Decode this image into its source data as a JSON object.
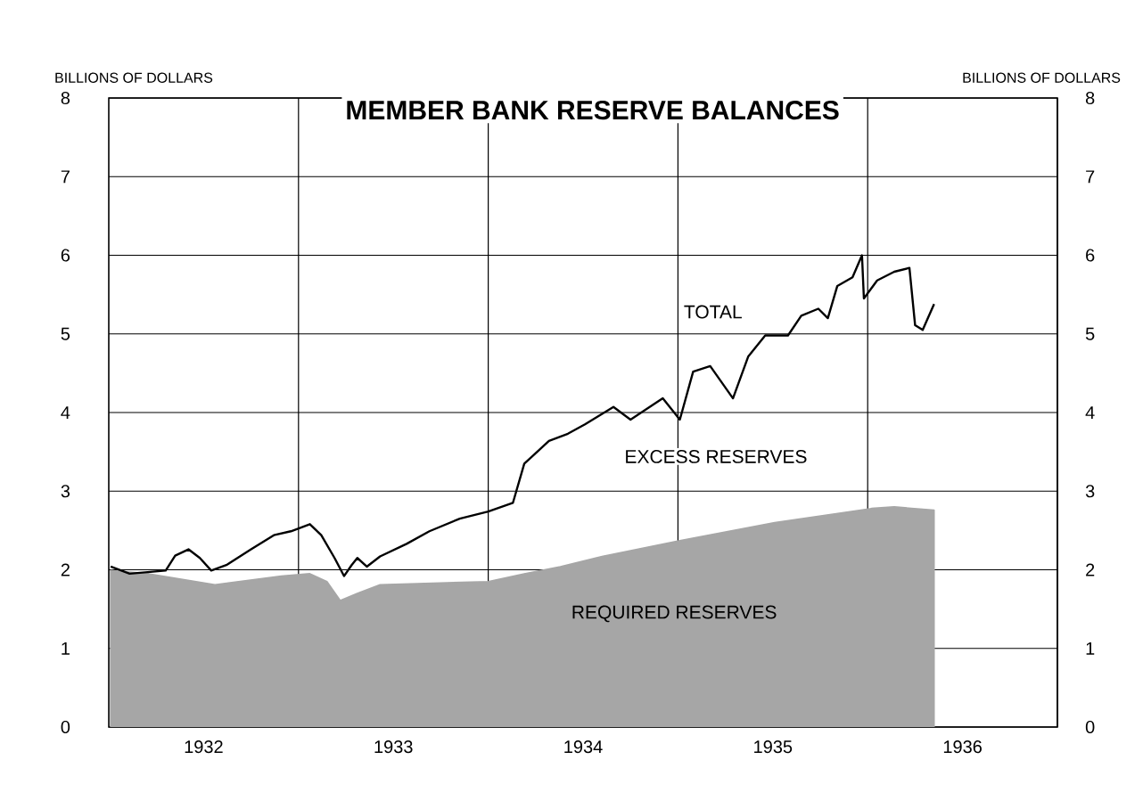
{
  "chart_data": {
    "type": "area",
    "title": "MEMBER BANK RESERVE BALANCES",
    "ylabel": "BILLIONS OF DOLLARS",
    "y2label": "BILLIONS OF DOLLARS",
    "xlim": [
      1932,
      1937
    ],
    "xticks": [
      {
        "value": 1932.5,
        "label": "1932"
      },
      {
        "value": 1933.5,
        "label": "1933"
      },
      {
        "value": 1934.5,
        "label": "1934"
      },
      {
        "value": 1935.5,
        "label": "1935"
      },
      {
        "value": 1936.5,
        "label": "1936"
      },
      {
        "value": 1933,
        "label": null
      },
      {
        "value": 1934,
        "label": null
      },
      {
        "value": 1935,
        "label": null
      },
      {
        "value": 1936,
        "label": null
      }
    ],
    "ylim": [
      0,
      8
    ],
    "yticks": [
      0,
      1,
      2,
      3,
      4,
      5,
      6,
      7,
      8
    ],
    "y2lim": [
      0,
      8
    ],
    "y2ticks": [
      0,
      1,
      2,
      3,
      4,
      5,
      6,
      7,
      8
    ],
    "grid": true,
    "annotations": [
      "EXCESS RESERVES"
    ],
    "series": [
      {
        "name": "TOTAL",
        "type": "line",
        "color": "#000000",
        "x": [
          1932.01,
          1932.11,
          1932.3,
          1932.35,
          1932.42,
          1932.48,
          1932.54,
          1932.62,
          1932.75,
          1932.87,
          1932.96,
          1933.06,
          1933.12,
          1933.19,
          1933.24,
          1933.28,
          1933.31,
          1933.36,
          1933.43,
          1933.57,
          1933.69,
          1933.85,
          1934.0,
          1934.13,
          1934.19,
          1934.24,
          1934.32,
          1934.42,
          1934.51,
          1934.66,
          1934.75,
          1934.92,
          1935.01,
          1935.08,
          1935.17,
          1935.29,
          1935.37,
          1935.46,
          1935.58,
          1935.65,
          1935.74,
          1935.79,
          1935.84,
          1935.92,
          1935.97,
          1935.98,
          1936.05,
          1936.14,
          1936.22,
          1936.25,
          1936.29,
          1936.35
        ],
        "values": [
          2.04,
          1.95,
          1.99,
          2.18,
          2.26,
          2.15,
          1.99,
          2.06,
          2.26,
          2.44,
          2.49,
          2.58,
          2.44,
          2.15,
          1.92,
          2.06,
          2.15,
          2.04,
          2.17,
          2.33,
          2.49,
          2.65,
          2.74,
          2.85,
          3.35,
          3.46,
          3.64,
          3.73,
          3.85,
          4.07,
          3.91,
          4.18,
          3.91,
          4.52,
          4.59,
          4.18,
          4.71,
          4.98,
          4.98,
          5.23,
          5.32,
          5.2,
          5.61,
          5.72,
          6.0,
          5.45,
          5.68,
          5.79,
          5.84,
          5.11,
          5.05,
          5.38
        ]
      },
      {
        "name": "REQUIRED RESERVES",
        "color": "#a6a6a6",
        "x": [
          1932.01,
          1932.21,
          1932.56,
          1932.91,
          1933.06,
          1933.15,
          1933.22,
          1933.31,
          1933.43,
          1934.0,
          1934.19,
          1934.38,
          1934.6,
          1935.01,
          1935.51,
          1936.02,
          1936.14,
          1936.35
        ],
        "values": [
          1.99,
          1.95,
          1.81,
          1.92,
          1.95,
          1.85,
          1.61,
          1.7,
          1.81,
          1.85,
          1.95,
          2.04,
          2.17,
          2.37,
          2.6,
          2.78,
          2.8,
          2.76
        ]
      }
    ]
  }
}
